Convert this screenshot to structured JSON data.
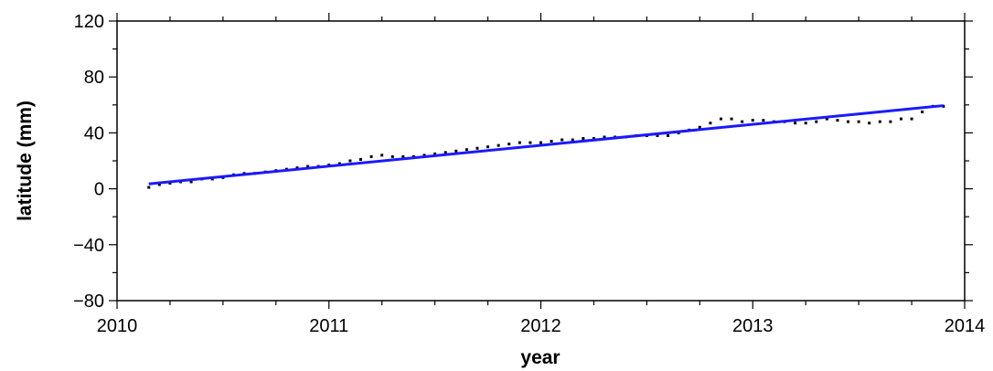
{
  "chart_data": {
    "type": "scatter",
    "xlabel": "year",
    "ylabel": "latitude (mm)",
    "xlim": [
      2010,
      2014
    ],
    "ylim": [
      -80,
      120
    ],
    "x_ticks": [
      2010,
      2011,
      2012,
      2013,
      2014
    ],
    "x_tick_labels": [
      "2010",
      "2011",
      "2012",
      "2013",
      "2014"
    ],
    "y_ticks": [
      -80,
      -40,
      0,
      40,
      80,
      120
    ],
    "y_tick_labels": [
      "−80",
      "−40",
      "0",
      "40",
      "80",
      "120"
    ],
    "grid": false,
    "legend": "none",
    "series": [
      {
        "kind": "points",
        "color": "#000000",
        "x": [
          2010.15,
          2010.2,
          2010.25,
          2010.3,
          2010.35,
          2010.4,
          2010.45,
          2010.5,
          2010.55,
          2010.6,
          2010.65,
          2010.7,
          2010.75,
          2010.8,
          2010.85,
          2010.9,
          2010.95,
          2011.0,
          2011.05,
          2011.1,
          2011.15,
          2011.2,
          2011.25,
          2011.3,
          2011.35,
          2011.4,
          2011.45,
          2011.5,
          2011.55,
          2011.6,
          2011.65,
          2011.7,
          2011.75,
          2011.8,
          2011.85,
          2011.9,
          2011.95,
          2012.0,
          2012.05,
          2012.1,
          2012.15,
          2012.2,
          2012.25,
          2012.3,
          2012.35,
          2012.4,
          2012.45,
          2012.5,
          2012.55,
          2012.6,
          2012.65,
          2012.7,
          2012.75,
          2012.8,
          2012.85,
          2012.9,
          2012.95,
          2013.0,
          2013.05,
          2013.1,
          2013.15,
          2013.2,
          2013.25,
          2013.3,
          2013.35,
          2013.4,
          2013.45,
          2013.5,
          2013.55,
          2013.6,
          2013.65,
          2013.7,
          2013.75,
          2013.8,
          2013.85,
          2013.9
        ],
        "y": [
          1,
          3,
          4,
          5,
          5,
          7,
          7,
          8,
          10,
          11,
          11,
          12,
          13,
          14,
          15,
          16,
          16,
          17,
          18,
          20,
          21,
          23,
          24,
          23,
          23,
          23,
          24,
          25,
          26,
          27,
          28,
          29,
          30,
          31,
          32,
          33,
          33,
          33,
          34,
          35,
          35,
          36,
          36,
          37,
          37,
          37,
          38,
          38,
          38,
          38,
          40,
          42,
          44,
          47,
          50,
          50,
          48,
          49,
          49,
          48,
          48,
          47,
          47,
          48,
          50,
          49,
          48,
          48,
          47,
          48,
          48,
          50,
          50,
          55,
          59,
          59
        ]
      },
      {
        "kind": "fit-line",
        "color": "#1a1aff",
        "x": [
          2010.15,
          2013.9
        ],
        "y": [
          3.5,
          59.5
        ]
      }
    ]
  }
}
